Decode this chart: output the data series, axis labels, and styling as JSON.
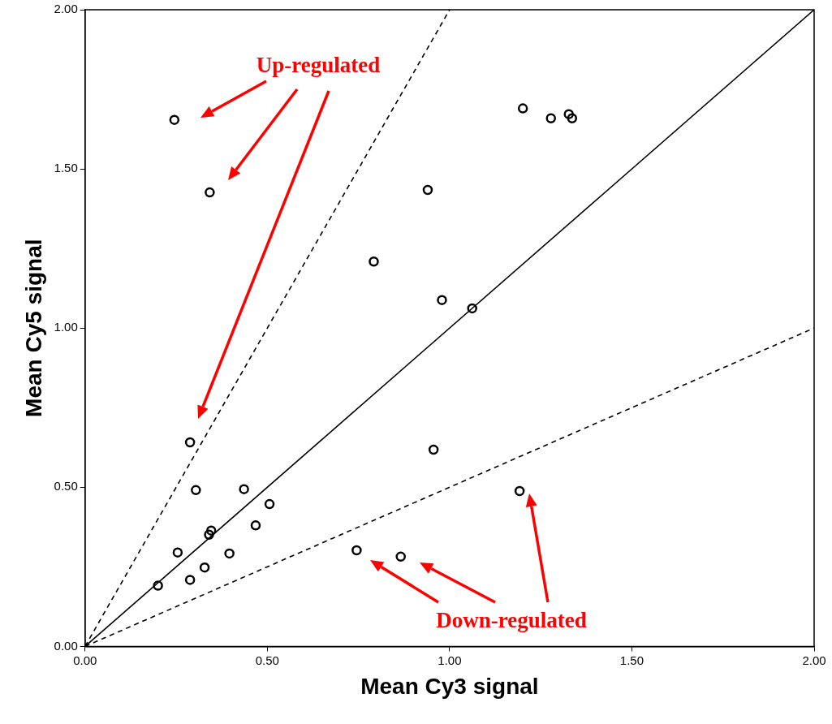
{
  "chart_data": {
    "type": "scatter",
    "xlabel": "Mean Cy3 signal",
    "ylabel": "Mean Cy5 signal",
    "xlim": [
      0,
      2
    ],
    "ylim": [
      0,
      2
    ],
    "xticks": [
      {
        "value": 0,
        "label": "0.00"
      },
      {
        "value": 0.5,
        "label": "0.50"
      },
      {
        "value": 1,
        "label": "1.00"
      },
      {
        "value": 1.5,
        "label": "1.50"
      },
      {
        "value": 2,
        "label": "2.00"
      }
    ],
    "yticks": [
      {
        "value": 0,
        "label": "0.00"
      },
      {
        "value": 0.5,
        "label": "0.50"
      },
      {
        "value": 1,
        "label": "1.00"
      },
      {
        "value": 1.5,
        "label": "1.50"
      },
      {
        "value": 2,
        "label": "2.00"
      }
    ],
    "grid": false,
    "legend": false,
    "marker": "circle",
    "annotations": [
      "Up-regulated",
      "Down-regulated"
    ],
    "series": [
      {
        "type": "scatter",
        "color": "#000000",
        "x": [
          0.245,
          0.342,
          0.792,
          0.94,
          0.979,
          1.062,
          1.201,
          1.278,
          1.327,
          1.336,
          0.288,
          0.304,
          0.436,
          0.506,
          0.254,
          0.288,
          0.2,
          0.328,
          0.396,
          0.34,
          0.346,
          0.468,
          0.956,
          1.192,
          0.745,
          0.866
        ],
        "values": [
          1.654,
          1.426,
          1.209,
          1.434,
          1.088,
          1.062,
          1.69,
          1.659,
          1.672,
          1.659,
          0.641,
          0.491,
          0.494,
          0.447,
          0.295,
          0.209,
          0.191,
          0.248,
          0.292,
          0.351,
          0.364,
          0.38,
          0.618,
          0.488,
          0.302,
          0.282
        ]
      },
      {
        "type": "line",
        "color": "#000000",
        "line_style": "solid",
        "marker": "none",
        "x": [
          0,
          2
        ],
        "values": [
          0,
          2
        ]
      },
      {
        "type": "line",
        "color": "#000000",
        "line_style": "dashed",
        "marker": "none",
        "x": [
          0,
          1
        ],
        "values": [
          0,
          2
        ]
      },
      {
        "type": "line",
        "color": "#000000",
        "line_style": "dashed",
        "marker": "none",
        "x": [
          0,
          2
        ],
        "values": [
          0,
          1
        ]
      }
    ]
  }
}
